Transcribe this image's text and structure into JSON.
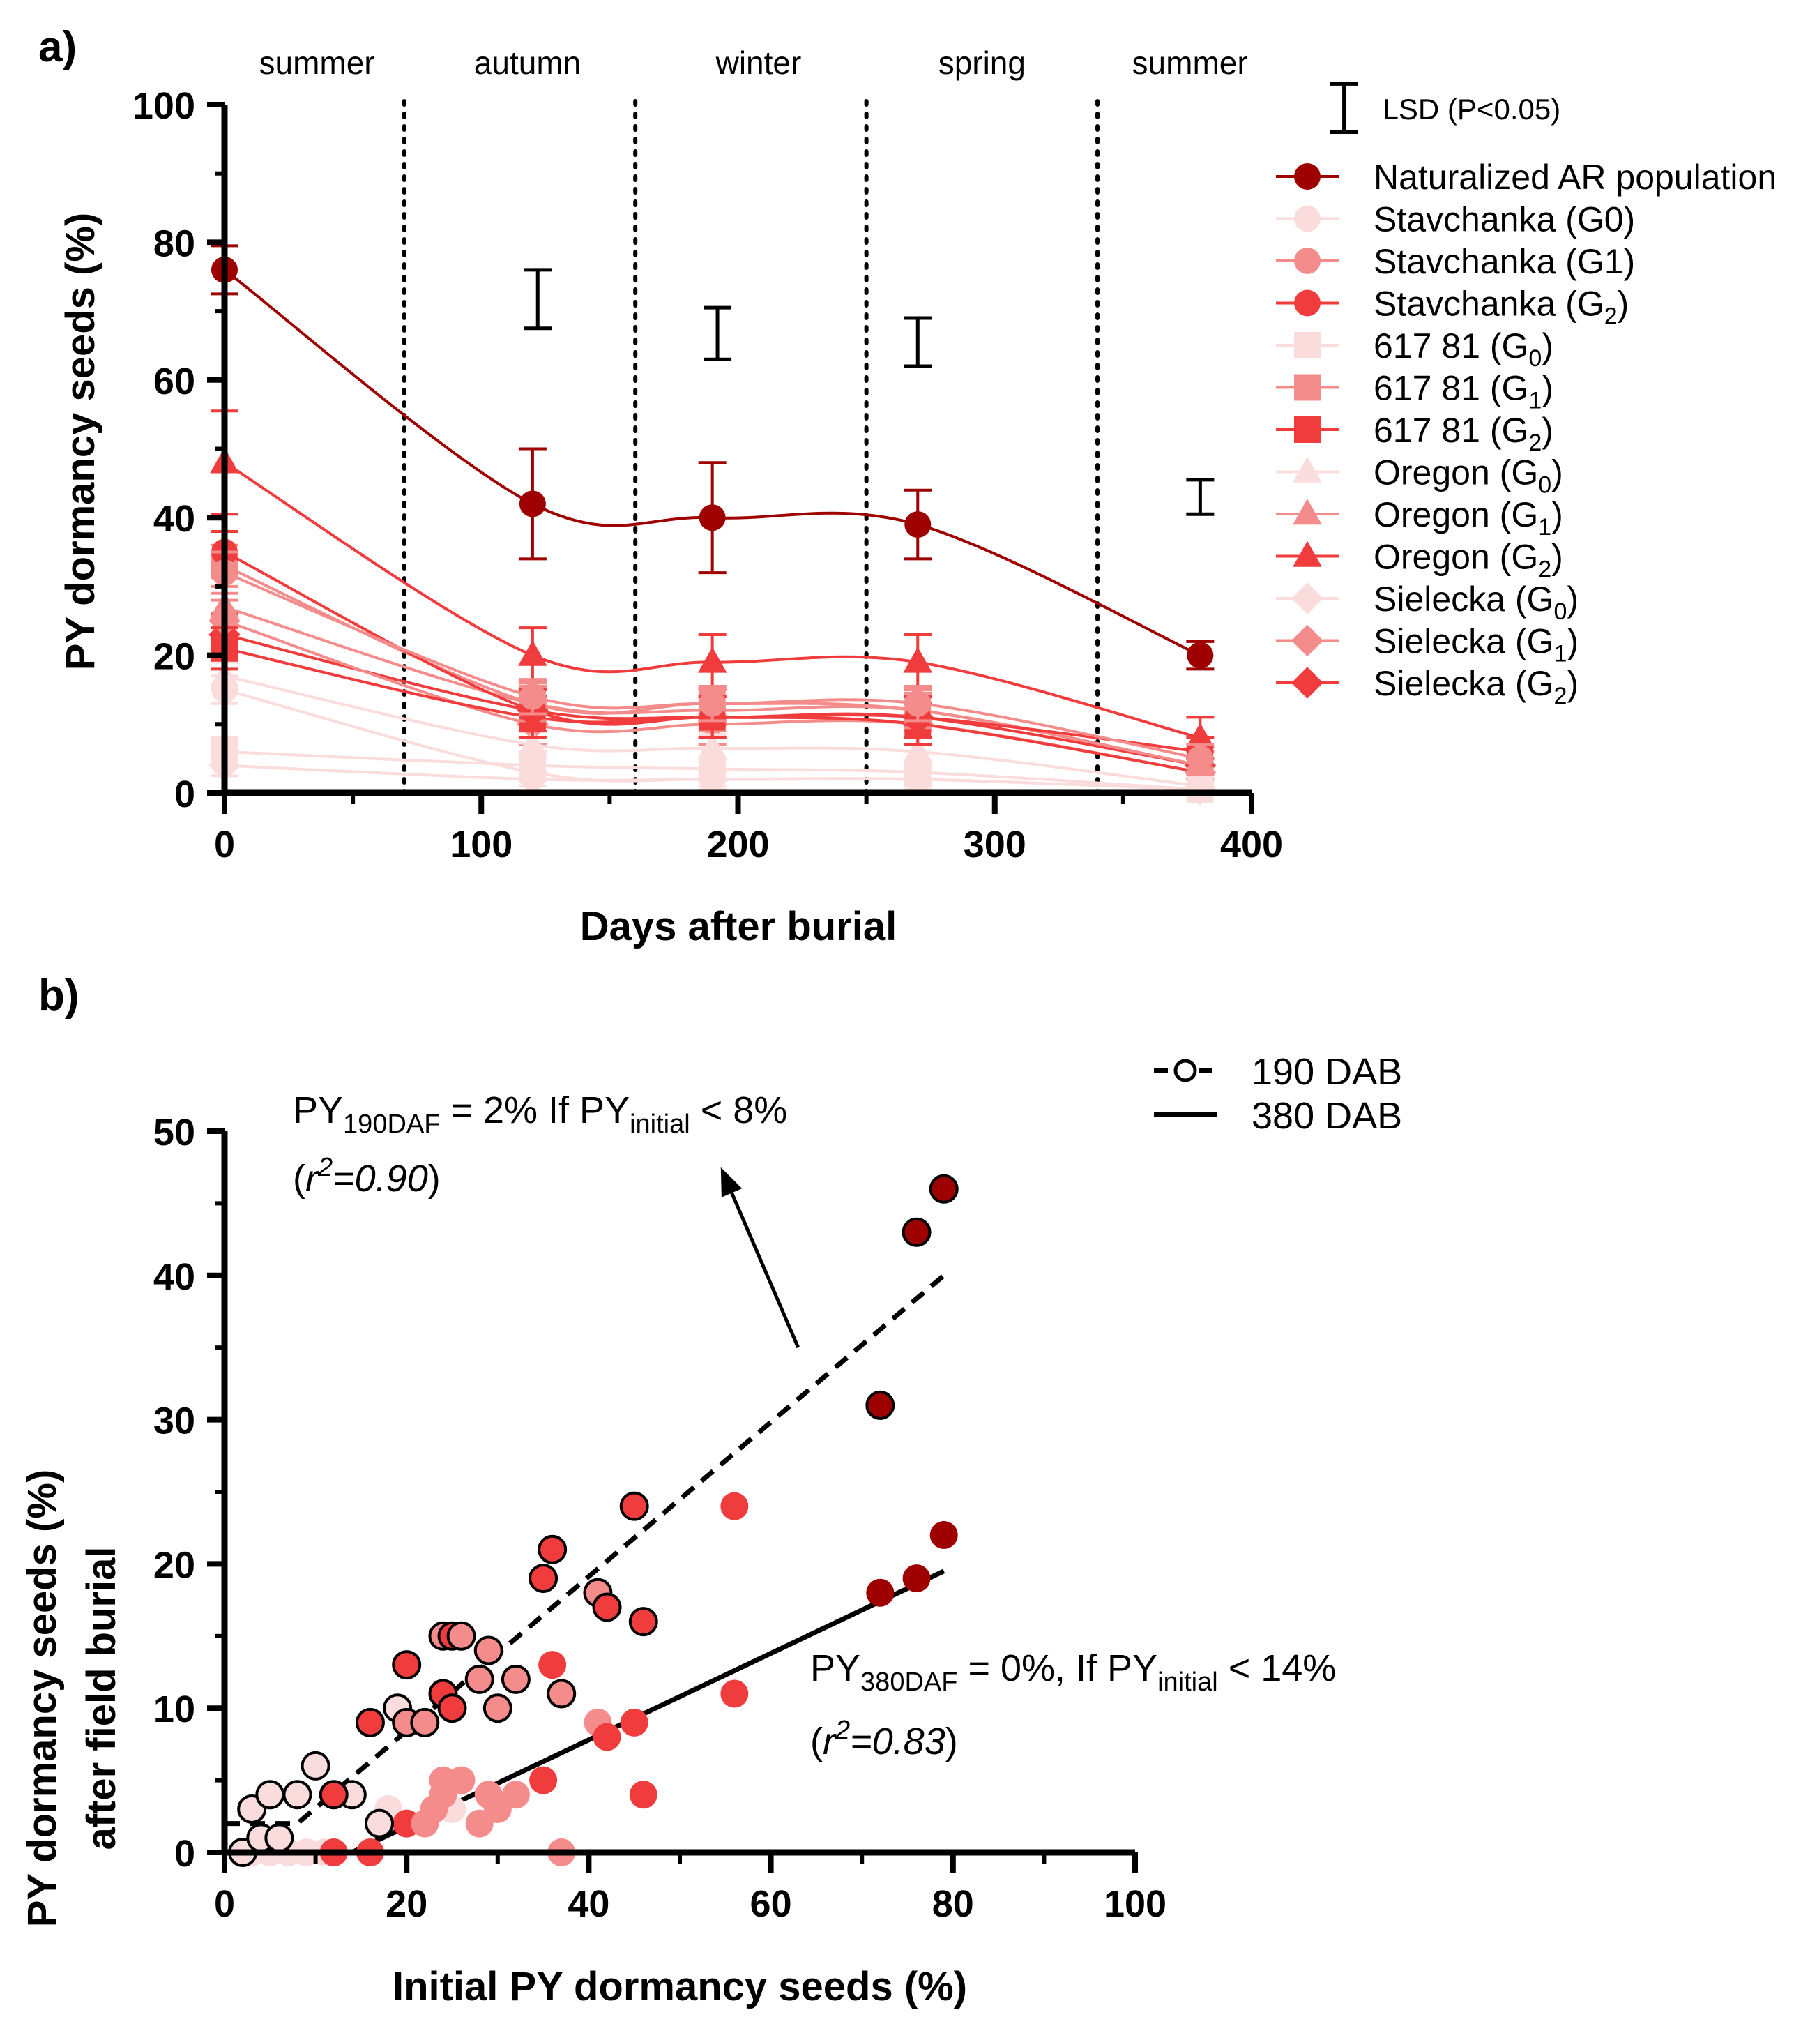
{
  "chart_data": [
    {
      "panel_label": "a)",
      "type": "line",
      "xlabel": "Days after burial",
      "ylabel": "PY dormancy seeds (%)",
      "xlim": [
        0,
        400
      ],
      "ylim": [
        0,
        100
      ],
      "xticks": [
        "0",
        "100",
        "200",
        "300",
        "400"
      ],
      "yticks": [
        "0",
        "20",
        "40",
        "60",
        "80",
        "100"
      ],
      "season_dividers_days": [
        70,
        160,
        250,
        340
      ],
      "seasons": [
        {
          "label": "summer",
          "center_day": 36
        },
        {
          "label": "autumn",
          "center_day": 118
        },
        {
          "label": "winter",
          "center_day": 208
        },
        {
          "label": "spring",
          "center_day": 295
        },
        {
          "label": "summer",
          "center_day": 376
        }
      ],
      "lsd_label": "LSD (P<0.05)",
      "lsd_bars": [
        {
          "day": 122,
          "low": 67.5,
          "high": 76
        },
        {
          "day": 192,
          "low": 63,
          "high": 70.5
        },
        {
          "day": 270,
          "low": 62,
          "high": 69
        },
        {
          "day": 380,
          "low": 40.5,
          "high": 45.5
        },
        {
          "day": 436,
          "low": 96,
          "high": 103
        }
      ],
      "days": [
        0,
        120,
        190,
        270,
        380
      ],
      "series": [
        {
          "name": "Naturalized AR population",
          "base": "Naturalized AR population",
          "sub": "",
          "marker": "circle",
          "color": "#9e0000",
          "values": [
            76,
            42,
            40,
            39,
            20
          ],
          "errors": [
            3.5,
            8,
            8,
            5,
            2
          ]
        },
        {
          "name": "Stavchanka (G0)",
          "base": "Stavchanka (G0)",
          "sub": "",
          "marker": "circle",
          "color": "#fbdcdc",
          "values": [
            15,
            3,
            2,
            2,
            0.5
          ],
          "errors": [
            2,
            2,
            1.5,
            1.5,
            0.5
          ]
        },
        {
          "name": "Stavchanka (G1)",
          "base": "Stavchanka (G1)",
          "sub": "",
          "marker": "circle",
          "color": "#f58c8c",
          "values": [
            32,
            14,
            13,
            13,
            5
          ],
          "errors": [
            3,
            2.5,
            2.5,
            2.5,
            2
          ]
        },
        {
          "name": "Stavchanka (G2)",
          "base": "Stavchanka (G",
          "sub": "2",
          "marker": "circle",
          "color": "#f03c3c",
          "values": [
            35,
            12,
            11,
            11,
            6
          ],
          "errors": [
            3,
            3,
            3,
            3,
            2
          ]
        },
        {
          "name": "617 81 (G0)",
          "base": "617 81 (G",
          "sub": "0",
          "marker": "square",
          "color": "#fbdcdc",
          "values": [
            6,
            4,
            3.5,
            3,
            0.5
          ],
          "errors": [
            2,
            2,
            1.5,
            1.5,
            0.5
          ]
        },
        {
          "name": "617 81 (G1)",
          "base": "617 81 (G",
          "sub": "1",
          "marker": "square",
          "color": "#f58c8c",
          "values": [
            33,
            13,
            13,
            12,
            4
          ],
          "errors": [
            3,
            2.5,
            2.5,
            2.5,
            2
          ]
        },
        {
          "name": "617 81 (G2)",
          "base": "617 81 (G",
          "sub": "2",
          "marker": "square",
          "color": "#f03c3c",
          "values": [
            21,
            11,
            11,
            10,
            3
          ],
          "errors": [
            3,
            3,
            3,
            3,
            2
          ]
        },
        {
          "name": "Oregon (G0)",
          "base": "Oregon (G",
          "sub": "0",
          "marker": "triangle",
          "color": "#fbdcdc",
          "values": [
            17,
            7,
            6.5,
            6,
            1
          ],
          "errors": [
            2,
            2,
            2,
            2,
            1
          ]
        },
        {
          "name": "Oregon (G1)",
          "base": "Oregon (G",
          "sub": "1",
          "marker": "triangle",
          "color": "#f58c8c",
          "values": [
            27,
            13,
            12,
            12,
            4
          ],
          "errors": [
            3,
            3,
            3,
            3,
            2
          ]
        },
        {
          "name": "Oregon (G2)",
          "base": "Oregon (G",
          "sub": "2",
          "marker": "triangle",
          "color": "#f03c3c",
          "values": [
            48,
            20,
            19,
            19,
            8
          ],
          "errors": [
            7.5,
            4,
            4,
            4,
            3
          ]
        },
        {
          "name": "Sielecka (G0)",
          "base": "Sielecka (G",
          "sub": "0",
          "marker": "diamond",
          "color": "#fbdcdc",
          "values": [
            4,
            2,
            2,
            2,
            0.5
          ],
          "errors": [
            1.5,
            1,
            1,
            1,
            0.5
          ]
        },
        {
          "name": "Sielecka (G1)",
          "base": "Sielecka (G",
          "sub": "1",
          "marker": "diamond",
          "color": "#f58c8c",
          "values": [
            25,
            10,
            10,
            10,
            3
          ],
          "errors": [
            3,
            3,
            3,
            3,
            2
          ]
        },
        {
          "name": "Sielecka (G2)",
          "base": "Sielecka (G",
          "sub": "2",
          "marker": "diamond",
          "color": "#f03c3c",
          "values": [
            23,
            12,
            11,
            11,
            4
          ],
          "errors": [
            3,
            3,
            3,
            3,
            2
          ]
        }
      ]
    },
    {
      "panel_label": "b)",
      "type": "scatter",
      "xlabel": "Initial PY dormancy seeds (%)",
      "ylabel_line1": "PY dormancy seeds (%)",
      "ylabel_line2": "after field burial",
      "xlim": [
        0,
        100
      ],
      "ylim": [
        0,
        50
      ],
      "xticks": [
        "0",
        "20",
        "40",
        "60",
        "80",
        "100"
      ],
      "yticks": [
        "0",
        "10",
        "20",
        "30",
        "40",
        "50"
      ],
      "legend": [
        {
          "label": "190 DAB",
          "style": "dashed-with-open-circle"
        },
        {
          "label": "380 DAB",
          "style": "solid"
        }
      ],
      "fit_190": {
        "threshold": 8,
        "base": 2,
        "x_end": 79,
        "y_end": 40
      },
      "fit_380": {
        "threshold": 14,
        "base": 0,
        "x_end": 79,
        "y_end": 19.5
      },
      "annotation_190": {
        "py": "PY",
        "sub1": "190DAF",
        "mid": " = 2% If PY",
        "sub2": "initial",
        "tail": " < 8%",
        "r_open": "(",
        "r": "r",
        "sup": "2",
        "r_val": "=0.90",
        "r_close": ")"
      },
      "annotation_380": {
        "py": "PY",
        "sub1": "380DAF",
        "mid": " = 0%, If PY",
        "sub2": "initial",
        "tail": " < 14%",
        "r_open": "(",
        "r": "r",
        "sup": "2",
        "r_val": "=0.83",
        "r_close": ")"
      },
      "arrow": {
        "from": [
          63,
          35
        ],
        "to": [
          54.5,
          47.5
        ]
      },
      "points_190": [
        {
          "x": 2,
          "y": 0,
          "c": "#fbdcdc"
        },
        {
          "x": 3,
          "y": 3,
          "c": "#fbdcdc"
        },
        {
          "x": 4,
          "y": 1,
          "c": "#fbdcdc"
        },
        {
          "x": 5,
          "y": 4,
          "c": "#fbdcdc"
        },
        {
          "x": 6,
          "y": 1,
          "c": "#fbdcdc"
        },
        {
          "x": 8,
          "y": 4,
          "c": "#fbdcdc"
        },
        {
          "x": 10,
          "y": 6,
          "c": "#fbdcdc"
        },
        {
          "x": 14,
          "y": 4,
          "c": "#fbdcdc"
        },
        {
          "x": 17,
          "y": 2,
          "c": "#fbdcdc"
        },
        {
          "x": 19,
          "y": 10,
          "c": "#fbdcdc"
        },
        {
          "x": 12,
          "y": 4,
          "c": "#f03c3c"
        },
        {
          "x": 16,
          "y": 9,
          "c": "#f03c3c"
        },
        {
          "x": 20,
          "y": 13,
          "c": "#f03c3c"
        },
        {
          "x": 20,
          "y": 9,
          "c": "#f58c8c"
        },
        {
          "x": 22,
          "y": 9,
          "c": "#f58c8c"
        },
        {
          "x": 24,
          "y": 11,
          "c": "#f03c3c"
        },
        {
          "x": 24,
          "y": 15,
          "c": "#f58c8c"
        },
        {
          "x": 25,
          "y": 15,
          "c": "#f03c3c"
        },
        {
          "x": 26,
          "y": 15,
          "c": "#f58c8c"
        },
        {
          "x": 25,
          "y": 10,
          "c": "#f03c3c"
        },
        {
          "x": 28,
          "y": 12,
          "c": "#f58c8c"
        },
        {
          "x": 29,
          "y": 14,
          "c": "#f58c8c"
        },
        {
          "x": 30,
          "y": 10,
          "c": "#f58c8c"
        },
        {
          "x": 32,
          "y": 12,
          "c": "#f58c8c"
        },
        {
          "x": 35,
          "y": 19,
          "c": "#f03c3c"
        },
        {
          "x": 36,
          "y": 21,
          "c": "#f03c3c"
        },
        {
          "x": 37,
          "y": 11,
          "c": "#f58c8c"
        },
        {
          "x": 41,
          "y": 18,
          "c": "#f58c8c"
        },
        {
          "x": 42,
          "y": 17,
          "c": "#f03c3c"
        },
        {
          "x": 45,
          "y": 24,
          "c": "#f03c3c"
        },
        {
          "x": 46,
          "y": 16,
          "c": "#f03c3c"
        },
        {
          "x": 72,
          "y": 31,
          "c": "#9e0000"
        },
        {
          "x": 76,
          "y": 43,
          "c": "#9e0000"
        },
        {
          "x": 79,
          "y": 46,
          "c": "#9e0000"
        }
      ],
      "points_380": [
        {
          "x": 3,
          "y": 0,
          "c": "#fbdcdc"
        },
        {
          "x": 5,
          "y": 0,
          "c": "#fbdcdc"
        },
        {
          "x": 7,
          "y": 0,
          "c": "#fbdcdc"
        },
        {
          "x": 9,
          "y": 0,
          "c": "#fbdcdc"
        },
        {
          "x": 11,
          "y": 0,
          "c": "#fbdcdc"
        },
        {
          "x": 18,
          "y": 3,
          "c": "#fbdcdc"
        },
        {
          "x": 25,
          "y": 3,
          "c": "#fbdcdc"
        },
        {
          "x": 12,
          "y": 0,
          "c": "#f03c3c"
        },
        {
          "x": 16,
          "y": 0,
          "c": "#f03c3c"
        },
        {
          "x": 20,
          "y": 2,
          "c": "#f03c3c"
        },
        {
          "x": 22,
          "y": 2,
          "c": "#f58c8c"
        },
        {
          "x": 23,
          "y": 3,
          "c": "#f58c8c"
        },
        {
          "x": 24,
          "y": 5,
          "c": "#f58c8c"
        },
        {
          "x": 24,
          "y": 4,
          "c": "#f58c8c"
        },
        {
          "x": 26,
          "y": 5,
          "c": "#f58c8c"
        },
        {
          "x": 28,
          "y": 2,
          "c": "#f58c8c"
        },
        {
          "x": 29,
          "y": 4,
          "c": "#f58c8c"
        },
        {
          "x": 30,
          "y": 3,
          "c": "#f58c8c"
        },
        {
          "x": 32,
          "y": 4,
          "c": "#f58c8c"
        },
        {
          "x": 35,
          "y": 5,
          "c": "#f03c3c"
        },
        {
          "x": 36,
          "y": 13,
          "c": "#f03c3c"
        },
        {
          "x": 37,
          "y": 0,
          "c": "#f58c8c"
        },
        {
          "x": 41,
          "y": 9,
          "c": "#f58c8c"
        },
        {
          "x": 42,
          "y": 8,
          "c": "#f03c3c"
        },
        {
          "x": 45,
          "y": 9,
          "c": "#f03c3c"
        },
        {
          "x": 46,
          "y": 4,
          "c": "#f03c3c"
        },
        {
          "x": 56,
          "y": 24,
          "c": "#f03c3c"
        },
        {
          "x": 56,
          "y": 11,
          "c": "#f03c3c"
        },
        {
          "x": 72,
          "y": 18,
          "c": "#9e0000"
        },
        {
          "x": 76,
          "y": 19,
          "c": "#9e0000"
        },
        {
          "x": 79,
          "y": 22,
          "c": "#9e0000"
        }
      ]
    }
  ]
}
